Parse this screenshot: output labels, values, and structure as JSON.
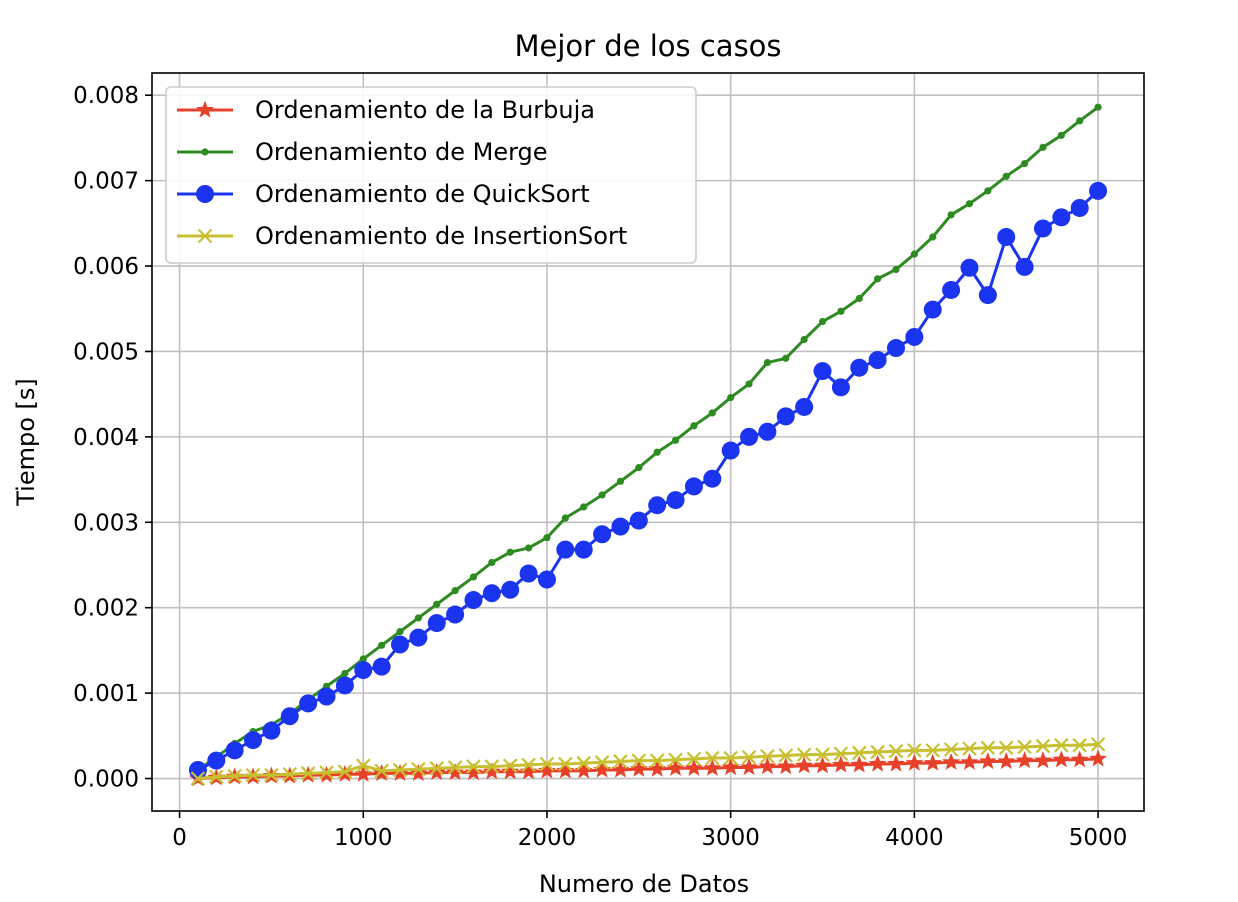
{
  "chart_data": {
    "type": "line",
    "title": "Mejor de los casos",
    "xlabel": "Numero de Datos",
    "ylabel": "Tiempo [s]",
    "xlim": [
      -150,
      5250
    ],
    "ylim": [
      -0.00038,
      0.00826
    ],
    "x_ticks": [
      0,
      1000,
      2000,
      3000,
      4000,
      5000
    ],
    "x_tick_labels": [
      "0",
      "1000",
      "2000",
      "3000",
      "4000",
      "5000"
    ],
    "y_ticks": [
      0,
      0.001,
      0.002,
      0.003,
      0.004,
      0.005,
      0.006,
      0.007,
      0.008
    ],
    "y_tick_labels": [
      "0.000",
      "0.001",
      "0.002",
      "0.003",
      "0.004",
      "0.005",
      "0.006",
      "0.007",
      "0.008"
    ],
    "grid": true,
    "legend_position": "upper-left",
    "x": [
      100,
      200,
      300,
      400,
      500,
      600,
      700,
      800,
      900,
      1000,
      1100,
      1200,
      1300,
      1400,
      1500,
      1600,
      1700,
      1800,
      1900,
      2000,
      2100,
      2200,
      2300,
      2400,
      2500,
      2600,
      2700,
      2800,
      2900,
      3000,
      3100,
      3200,
      3300,
      3400,
      3500,
      3600,
      3700,
      3800,
      3900,
      4000,
      4100,
      4200,
      4300,
      4400,
      4500,
      4600,
      4700,
      4800,
      4900,
      5000
    ],
    "series": [
      {
        "name": "Ordenamiento de la Burbuja",
        "color": "#e8412a",
        "marker": "star",
        "values": [
          0.0,
          1e-05,
          2e-05,
          2e-05,
          3e-05,
          3e-05,
          4e-05,
          4e-05,
          5e-05,
          5e-05,
          6e-05,
          6e-05,
          6e-05,
          7e-05,
          7e-05,
          7e-05,
          8e-05,
          8e-05,
          8e-05,
          9e-05,
          9e-05,
          9e-05,
          0.0001,
          0.0001,
          0.00011,
          0.00011,
          0.00012,
          0.00012,
          0.00012,
          0.00013,
          0.00013,
          0.00014,
          0.00014,
          0.00015,
          0.00015,
          0.00016,
          0.00016,
          0.00017,
          0.00017,
          0.00018,
          0.00018,
          0.00019,
          0.00019,
          0.0002,
          0.0002,
          0.00021,
          0.00021,
          0.00022,
          0.00022,
          0.00023
        ]
      },
      {
        "name": "Ordenamiento de Merge",
        "color": "#2e8b22",
        "marker": "point",
        "values": [
          0.0001,
          0.00025,
          0.00041,
          0.00055,
          0.00063,
          0.00076,
          0.00092,
          0.00108,
          0.00123,
          0.0014,
          0.00156,
          0.00172,
          0.00188,
          0.00204,
          0.0022,
          0.00236,
          0.00253,
          0.00265,
          0.0027,
          0.00282,
          0.00305,
          0.00318,
          0.00332,
          0.00348,
          0.00364,
          0.00382,
          0.00396,
          0.00413,
          0.00428,
          0.00446,
          0.00462,
          0.00487,
          0.00492,
          0.00514,
          0.00535,
          0.00547,
          0.00562,
          0.00585,
          0.00596,
          0.00614,
          0.00634,
          0.0066,
          0.00673,
          0.00688,
          0.00705,
          0.0072,
          0.00739,
          0.00753,
          0.0077,
          0.00786
        ]
      },
      {
        "name": "Ordenamiento de QuickSort",
        "color": "#1a34f0",
        "marker": "circle",
        "values": [
          0.0001,
          0.00021,
          0.00033,
          0.00045,
          0.00056,
          0.00073,
          0.00088,
          0.00096,
          0.00109,
          0.00127,
          0.00131,
          0.00157,
          0.00165,
          0.00182,
          0.00192,
          0.00209,
          0.00217,
          0.00221,
          0.0024,
          0.00233,
          0.00268,
          0.00268,
          0.00286,
          0.00295,
          0.00302,
          0.0032,
          0.00326,
          0.00342,
          0.00351,
          0.00384,
          0.004,
          0.00406,
          0.00424,
          0.00435,
          0.00477,
          0.00458,
          0.00481,
          0.0049,
          0.00504,
          0.00517,
          0.00549,
          0.00572,
          0.00598,
          0.00566,
          0.00634,
          0.00599,
          0.00644,
          0.00657,
          0.00668,
          0.00688
        ]
      },
      {
        "name": "Ordenamiento de InsertionSort",
        "color": "#c8c030",
        "marker": "x",
        "values": [
          0.0,
          2e-05,
          3e-05,
          4e-05,
          4e-05,
          5e-05,
          6e-05,
          7e-05,
          8e-05,
          0.00015,
          9e-05,
          0.0001,
          0.00011,
          0.00012,
          0.00013,
          0.00014,
          0.00014,
          0.00015,
          0.00016,
          0.00017,
          0.00017,
          0.00018,
          0.00019,
          0.0002,
          0.00021,
          0.00021,
          0.00022,
          0.00023,
          0.00024,
          0.00024,
          0.00025,
          0.00026,
          0.00027,
          0.00028,
          0.00028,
          0.00029,
          0.0003,
          0.00031,
          0.00032,
          0.00033,
          0.00033,
          0.00034,
          0.00035,
          0.00036,
          0.00036,
          0.00037,
          0.00038,
          0.00039,
          0.00039,
          0.0004
        ]
      }
    ]
  }
}
